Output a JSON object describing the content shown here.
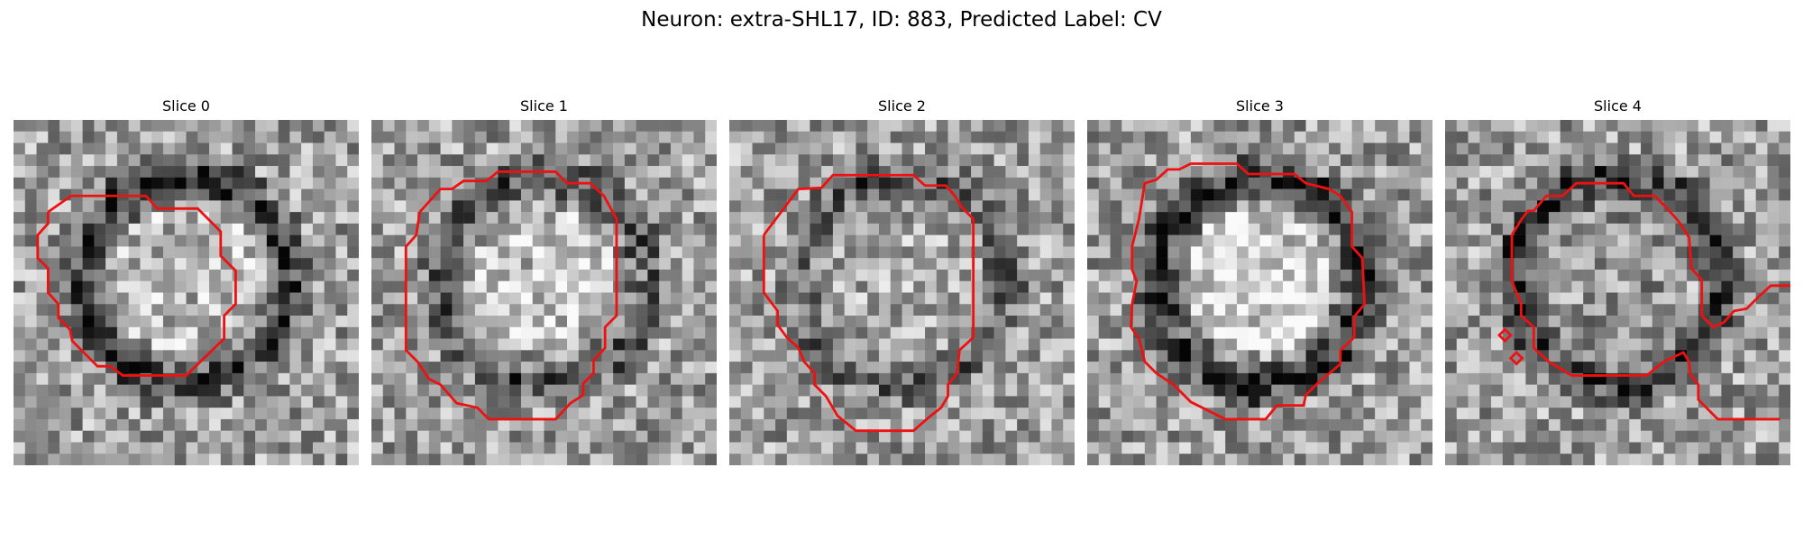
{
  "figure": {
    "title": "Neuron: extra-SHL17, ID: 883, Predicted Label: CV"
  },
  "panels": [
    {
      "title": "Slice 0",
      "seed": 11,
      "dark_ring": 0.55,
      "center_bright": 0.15
    },
    {
      "title": "Slice 1",
      "seed": 27,
      "dark_ring": 0.35,
      "center_bright": 0.2
    },
    {
      "title": "Slice 2",
      "seed": 43,
      "dark_ring": 0.3,
      "center_bright": 0.05
    },
    {
      "title": "Slice 3",
      "seed": 59,
      "dark_ring": 0.6,
      "center_bright": 0.3
    },
    {
      "title": "Slice 4",
      "seed": 71,
      "dark_ring": 0.55,
      "center_bright": -0.05
    }
  ],
  "colors": {
    "contour": "#ee1111"
  }
}
